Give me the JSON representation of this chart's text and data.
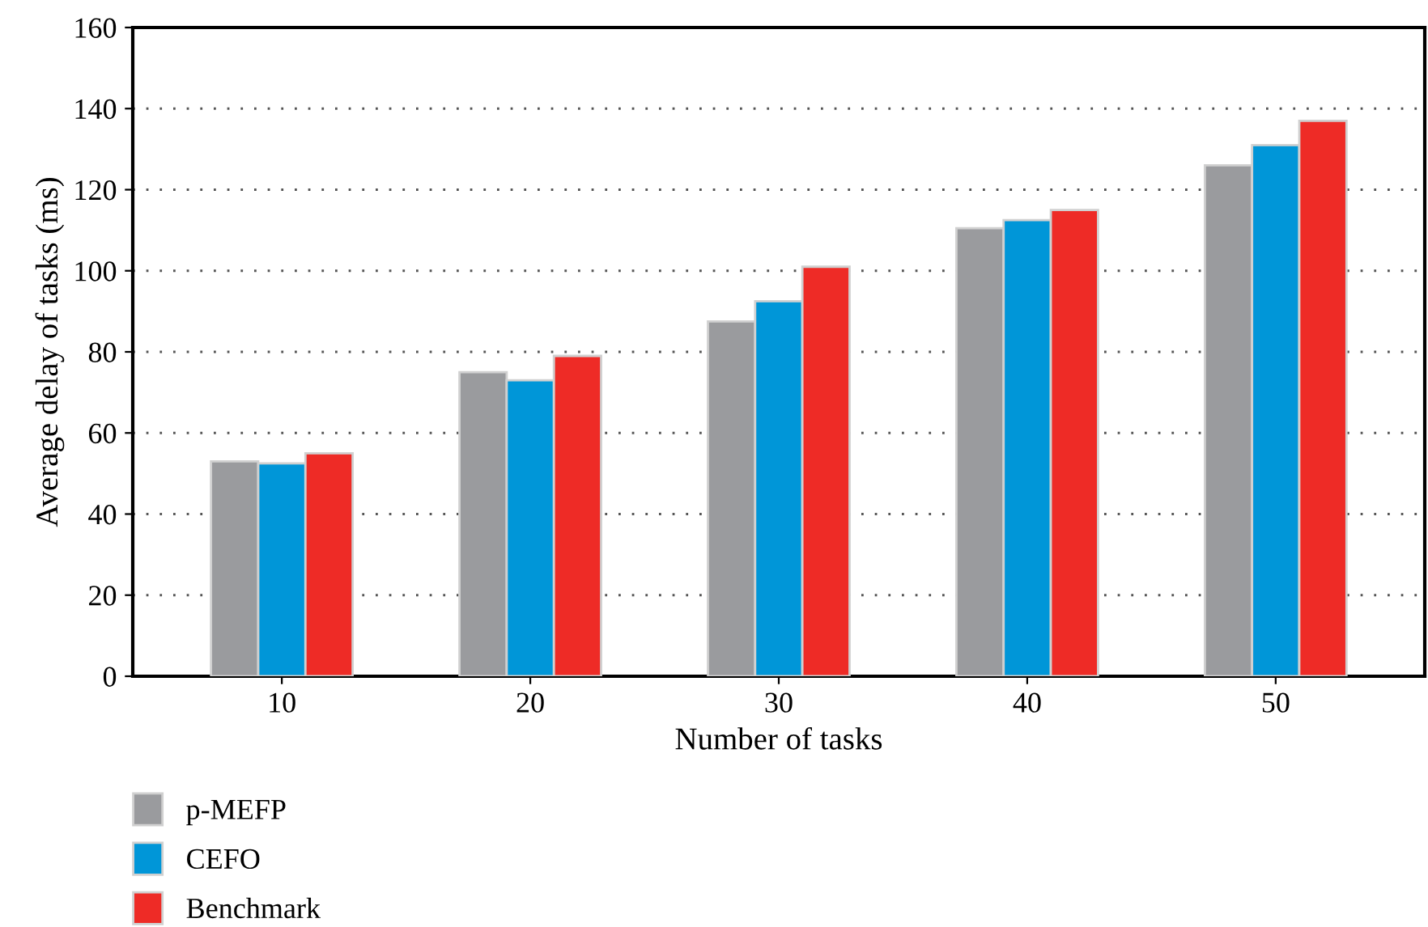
{
  "chart_data": {
    "type": "bar",
    "xlabel": "Number of tasks",
    "ylabel": "Average delay of tasks (ms)",
    "categories": [
      "10",
      "20",
      "30",
      "40",
      "50"
    ],
    "series": [
      {
        "name": "p-MEFP",
        "color": "#9a9b9e",
        "values": [
          53,
          75,
          87.5,
          110.5,
          126
        ]
      },
      {
        "name": "CEFO",
        "color": "#0096d8",
        "values": [
          52.5,
          73,
          92.5,
          112.5,
          131
        ]
      },
      {
        "name": "Benchmark",
        "color": "#ee2b26",
        "values": [
          55,
          79,
          101,
          115,
          137
        ]
      }
    ],
    "ylim": [
      0,
      160
    ],
    "yticks": [
      0,
      20,
      40,
      60,
      80,
      100,
      120,
      140,
      160
    ],
    "grid": "y",
    "legend": "bottom left"
  }
}
